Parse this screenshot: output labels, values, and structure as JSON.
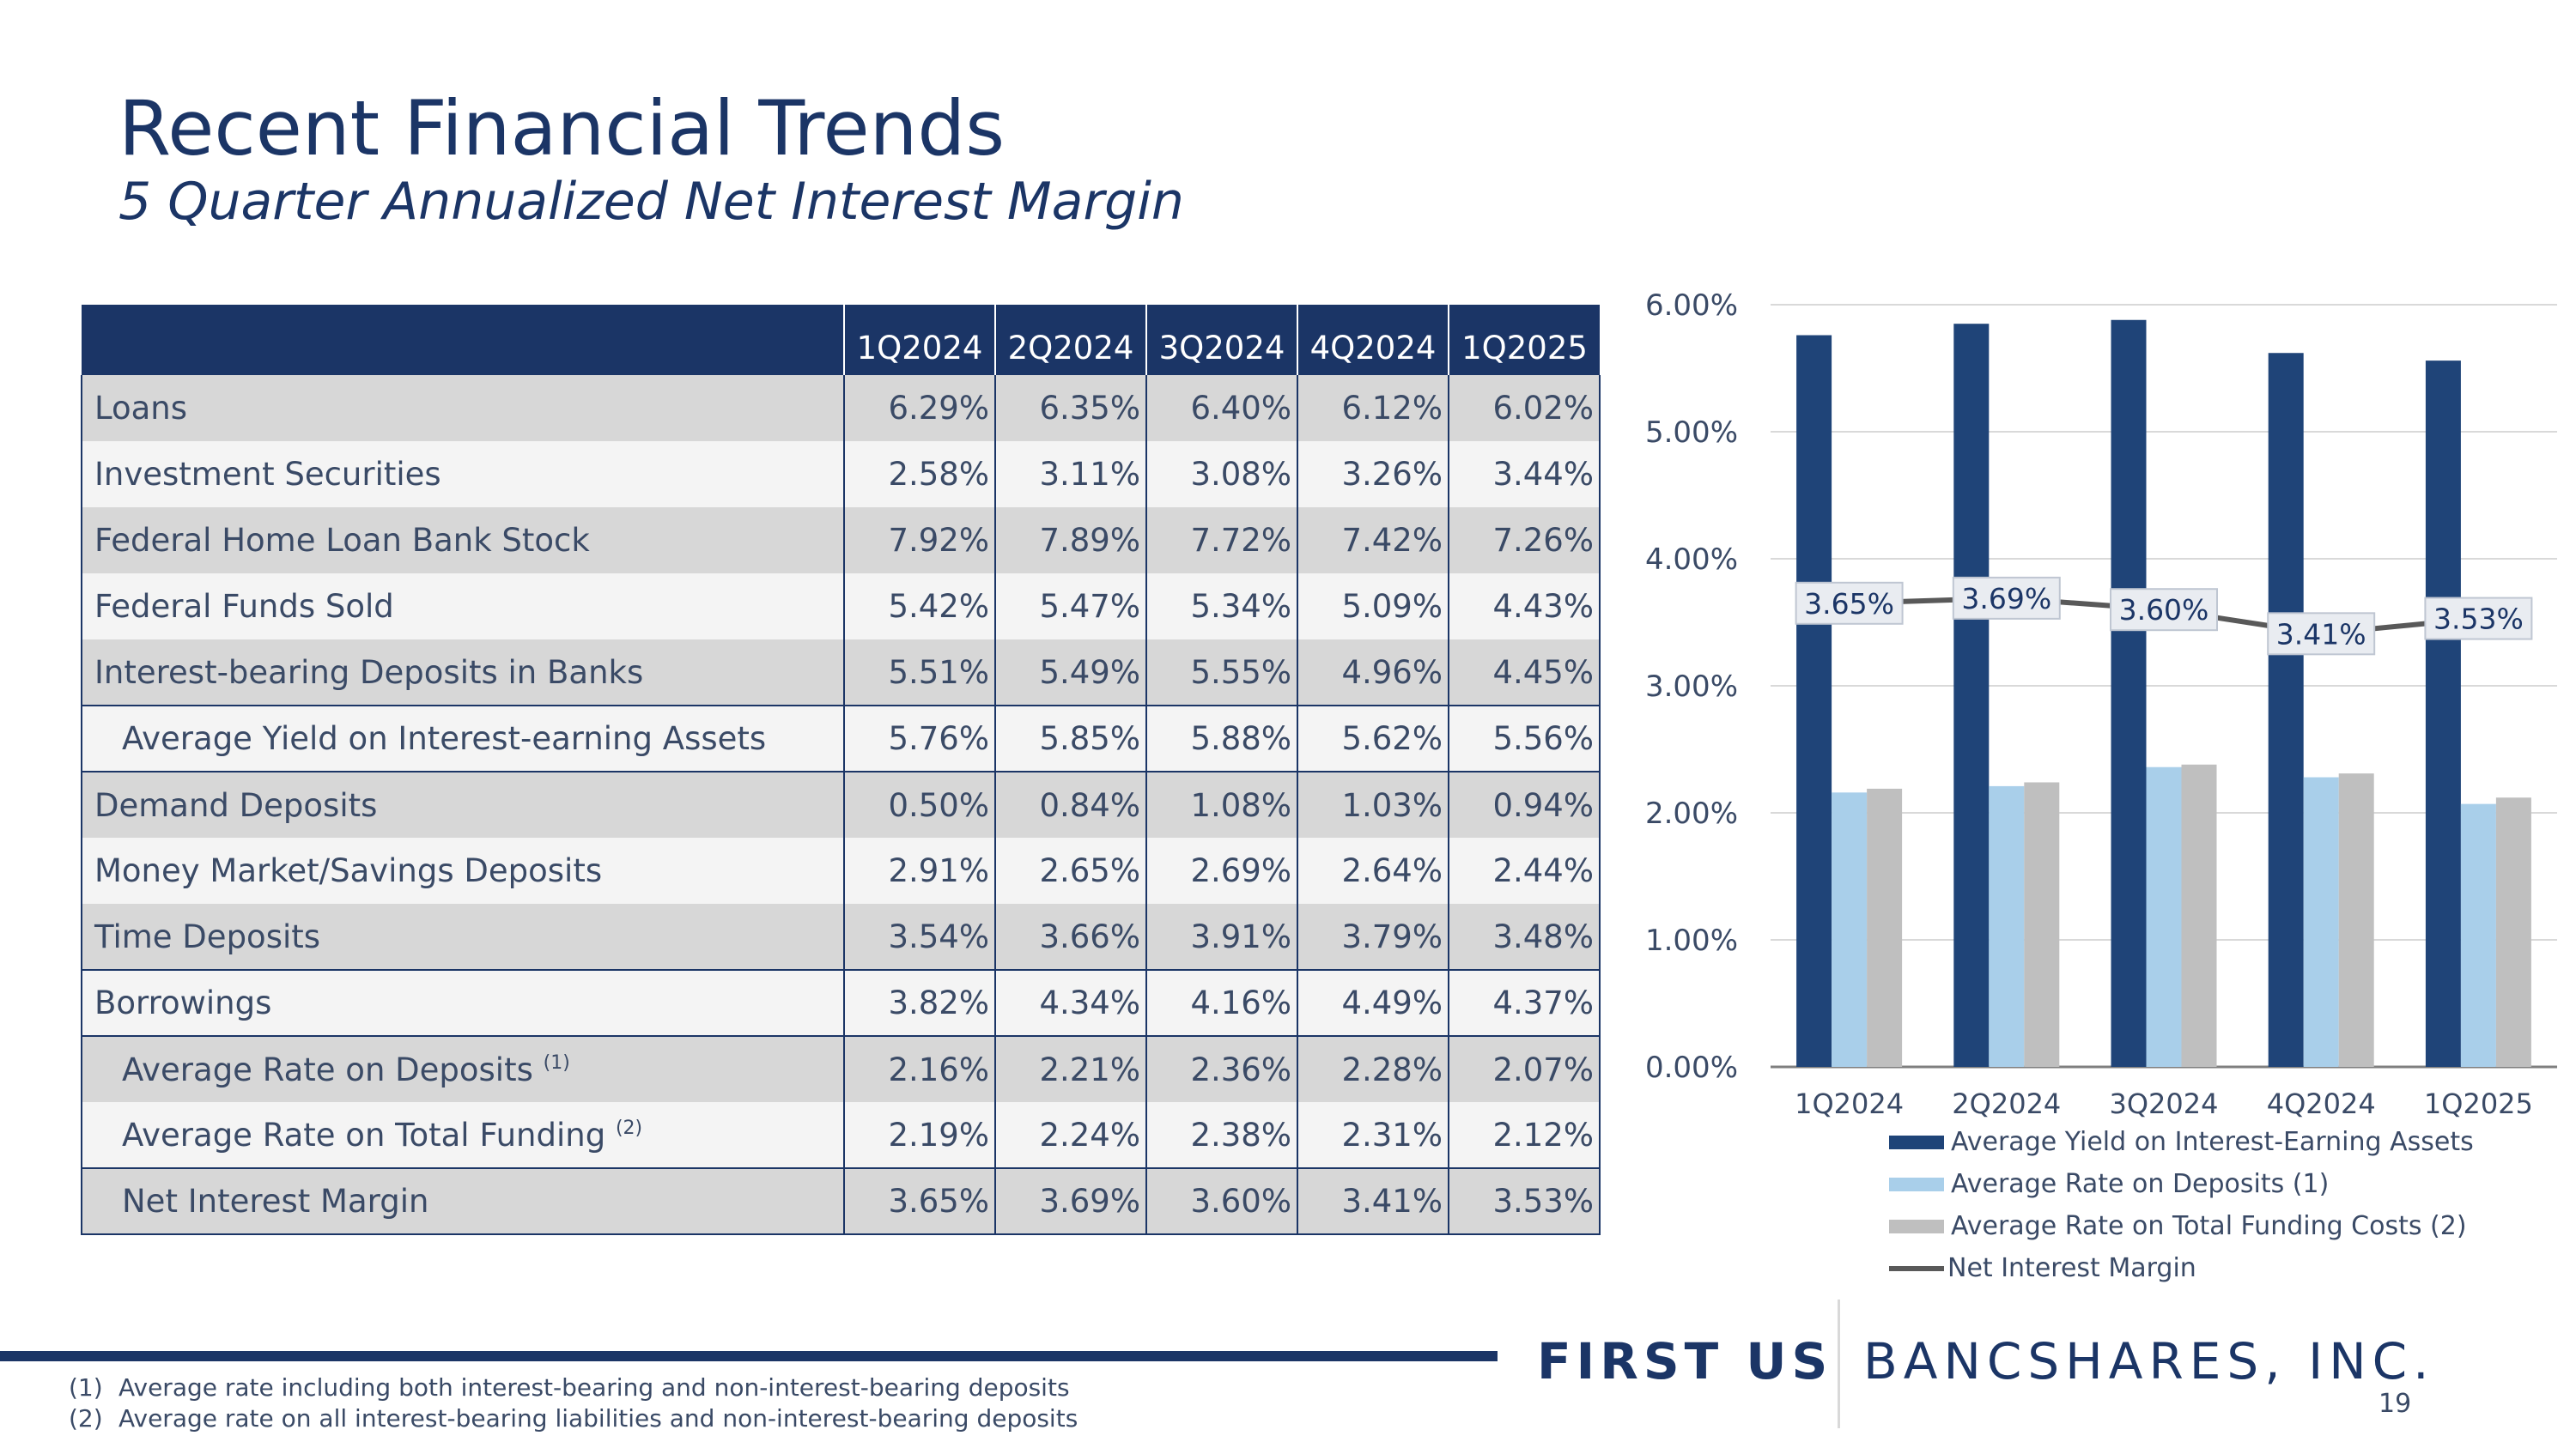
{
  "title": "Recent Financial Trends",
  "subtitle": "5 Quarter Annualized Net Interest Margin",
  "table": {
    "columns": [
      "1Q2024",
      "2Q2024",
      "3Q2024",
      "4Q2024",
      "1Q2025"
    ],
    "rows": [
      {
        "label": "Loans",
        "fn": "",
        "values": [
          "6.29%",
          "6.35%",
          "6.40%",
          "6.12%",
          "6.02%"
        ]
      },
      {
        "label": "Investment Securities",
        "fn": "",
        "values": [
          "2.58%",
          "3.11%",
          "3.08%",
          "3.26%",
          "3.44%"
        ]
      },
      {
        "label": "Federal Home Loan Bank Stock",
        "fn": "",
        "values": [
          "7.92%",
          "7.89%",
          "7.72%",
          "7.42%",
          "7.26%"
        ]
      },
      {
        "label": "Federal Funds Sold",
        "fn": "",
        "values": [
          "5.42%",
          "5.47%",
          "5.34%",
          "5.09%",
          "4.43%"
        ]
      },
      {
        "label": "Interest-bearing Deposits in Banks",
        "fn": "",
        "values": [
          "5.51%",
          "5.49%",
          "5.55%",
          "4.96%",
          "4.45%"
        ]
      },
      {
        "label": "Average Yield on Interest-earning Assets",
        "fn": "",
        "values": [
          "5.76%",
          "5.85%",
          "5.88%",
          "5.62%",
          "5.56%"
        ]
      },
      {
        "label": "Demand Deposits",
        "fn": "",
        "values": [
          "0.50%",
          "0.84%",
          "1.08%",
          "1.03%",
          "0.94%"
        ]
      },
      {
        "label": "Money Market/Savings Deposits",
        "fn": "",
        "values": [
          "2.91%",
          "2.65%",
          "2.69%",
          "2.64%",
          "2.44%"
        ]
      },
      {
        "label": "Time Deposits",
        "fn": "",
        "values": [
          "3.54%",
          "3.66%",
          "3.91%",
          "3.79%",
          "3.48%"
        ]
      },
      {
        "label": "Borrowings",
        "fn": "",
        "values": [
          "3.82%",
          "4.34%",
          "4.16%",
          "4.49%",
          "4.37%"
        ]
      },
      {
        "label": "Average Rate on Deposits",
        "fn": "(1)",
        "values": [
          "2.16%",
          "2.21%",
          "2.36%",
          "2.28%",
          "2.07%"
        ]
      },
      {
        "label": "Average Rate on Total Funding",
        "fn": "(2)",
        "values": [
          "2.19%",
          "2.24%",
          "2.38%",
          "2.31%",
          "2.12%"
        ]
      },
      {
        "label": "Net Interest Margin",
        "fn": "",
        "values": [
          "3.65%",
          "3.69%",
          "3.60%",
          "3.41%",
          "3.53%"
        ]
      }
    ]
  },
  "chart_data": {
    "type": "bar",
    "categories": [
      "1Q2024",
      "2Q2024",
      "3Q2024",
      "4Q2024",
      "1Q2025"
    ],
    "series": [
      {
        "name": "Average Yield on Interest-Earning Assets",
        "kind": "bar",
        "color": "#1f4478",
        "values": [
          5.76,
          5.85,
          5.88,
          5.62,
          5.56
        ]
      },
      {
        "name": "Average Rate on Deposits (1)",
        "kind": "bar",
        "color": "#a9cfea",
        "values": [
          2.16,
          2.21,
          2.36,
          2.28,
          2.07
        ]
      },
      {
        "name": "Average Rate on Total Funding Costs (2)",
        "kind": "bar",
        "color": "#bfbfbf",
        "values": [
          2.19,
          2.24,
          2.38,
          2.31,
          2.12
        ]
      },
      {
        "name": "Net Interest Margin",
        "kind": "line",
        "color": "#595959",
        "values": [
          3.65,
          3.69,
          3.6,
          3.41,
          3.53
        ],
        "labels": [
          "3.65%",
          "3.69%",
          "3.60%",
          "3.41%",
          "3.53%"
        ]
      }
    ],
    "yticks": [
      "0.00%",
      "1.00%",
      "2.00%",
      "3.00%",
      "4.00%",
      "5.00%",
      "6.00%"
    ],
    "ylim": [
      0,
      6
    ],
    "grid": true,
    "legend": "bottom"
  },
  "footnotes": [
    {
      "num": "(1)",
      "text": "Average rate including both interest-bearing and non-interest-bearing deposits"
    },
    {
      "num": "(2)",
      "text": "Average rate on all interest-bearing liabilities and non-interest-bearing deposits"
    }
  ],
  "brand": {
    "part1": "FIRST US",
    "part2": "BANCSHARES, INC."
  },
  "page_number": "19"
}
